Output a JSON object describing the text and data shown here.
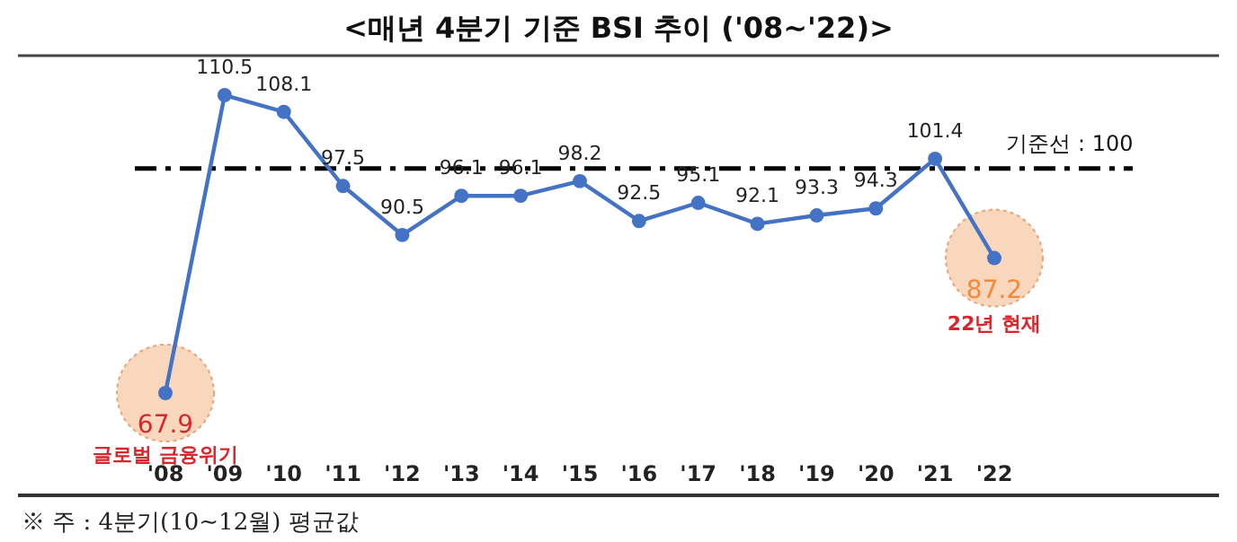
{
  "chart_data": {
    "type": "line",
    "title": "<매년 4분기 기준 BSI 추이 ('08~'22)>",
    "categories": [
      "'08",
      "'09",
      "'10",
      "'11",
      "'12",
      "'13",
      "'14",
      "'15",
      "'16",
      "'17",
      "'18",
      "'19",
      "'20",
      "'21",
      "'22"
    ],
    "series": [
      {
        "color": "#4472c4",
        "values": [
          67.9,
          110.5,
          108.1,
          97.5,
          90.5,
          96.1,
          96.1,
          98.2,
          92.5,
          95.1,
          92.1,
          93.3,
          94.3,
          101.4,
          87.2
        ]
      }
    ],
    "data_labels": true,
    "marker": "circle",
    "tick_labels": "x",
    "ref_lines": [
      {
        "axis": "y",
        "value": 100,
        "label": "기준선 : 100",
        "color": "#000000",
        "line_style": "dashdot"
      }
    ],
    "annotations": [
      {
        "text": "글로벌 금융위기",
        "x": "'08",
        "y": 67.9
      },
      {
        "text": "22년 현재",
        "x": "'22",
        "y": 87.2
      },
      "※ 주 : 4분기(10~12월) 평균값"
    ]
  }
}
